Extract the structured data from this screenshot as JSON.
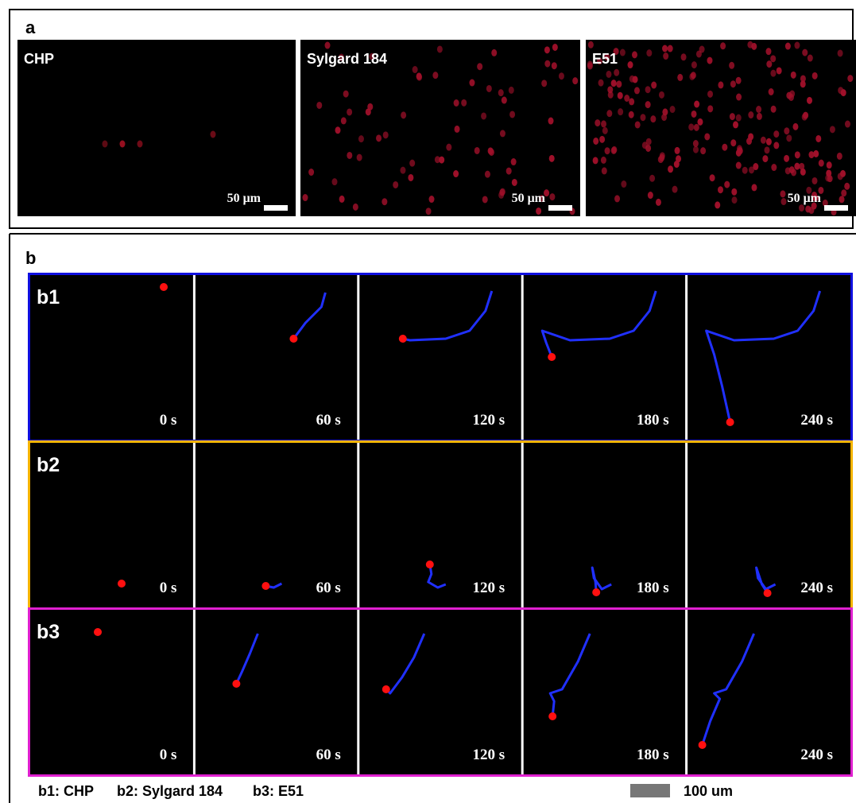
{
  "panel_a": {
    "label": "a",
    "images": [
      {
        "title": "CHP",
        "scale_bar": "50 μm"
      },
      {
        "title": "Sylgard 184",
        "scale_bar": "50 μm"
      },
      {
        "title": "E51",
        "scale_bar": "50 μm"
      }
    ]
  },
  "panel_b": {
    "label": "b",
    "rows": [
      {
        "label": "b1",
        "times": [
          "0 s",
          "60 s",
          "120 s",
          "180 s",
          "240 s"
        ]
      },
      {
        "label": "b2",
        "times": [
          "0 s",
          "60 s",
          "120 s",
          "180 s",
          "240 s"
        ]
      },
      {
        "label": "b3",
        "times": [
          "0 s",
          "60 s",
          "120 s",
          "180 s",
          "240 s"
        ]
      }
    ],
    "legend": [
      "b1: CHP",
      "b2: Sylgard 184",
      "b3: E51"
    ],
    "scale_bar": "100 um"
  }
}
